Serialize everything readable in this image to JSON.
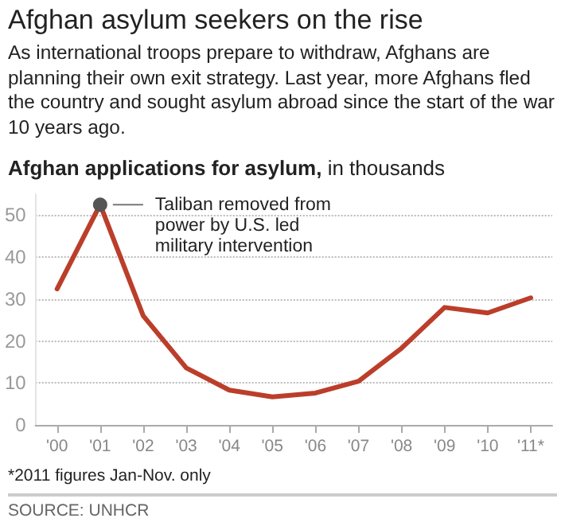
{
  "chart_data": {
    "type": "line",
    "title": "Afghan asylum seekers on the rise",
    "subtitle": "As international troops prepare to withdraw, Afghans are planning their own exit strategy. Last year, more Afghans fled the country and sought asylum abroad since the start of the war 10 years ago.",
    "ylabel": "Afghan applications for asylum, in thousands",
    "categories": [
      "'00",
      "'01",
      "'02",
      "'03",
      "'04",
      "'05",
      "'06",
      "'07",
      "'08",
      "'09",
      "'10",
      "'11*"
    ],
    "series": [
      {
        "color": "#bb3e2a",
        "values": [
          32.4,
          52.5,
          26,
          13.6,
          8.3,
          6.7,
          7.6,
          10.4,
          18.3,
          28,
          26.7,
          30.3
        ]
      }
    ],
    "ylim": [
      0,
      55
    ],
    "yticks": [
      0,
      10,
      20,
      30,
      40,
      50
    ],
    "grid": "y",
    "marker": "none",
    "line_style": "solid",
    "annotations": [
      {
        "text": "Taliban removed from power by U.S. led military intervention",
        "x": "'01",
        "y": 52.5
      },
      "*2011 figures Jan-Nov. only",
      "SOURCE: UNHCR"
    ]
  }
}
